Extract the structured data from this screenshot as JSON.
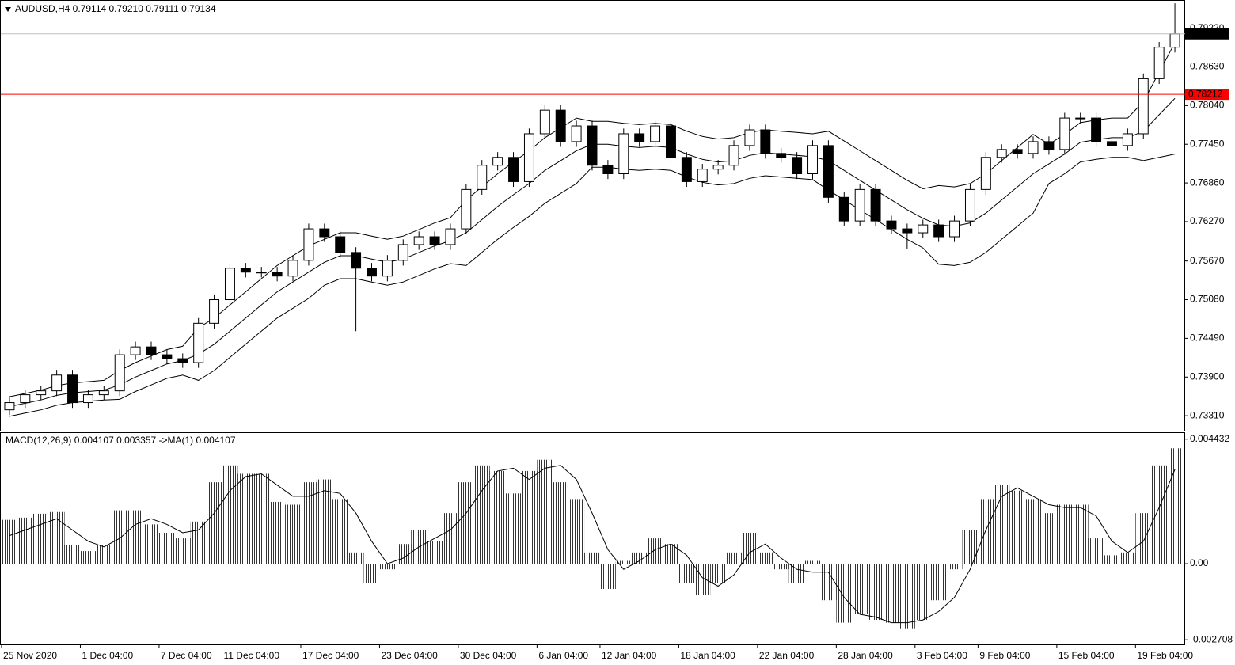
{
  "chart_data": [
    {
      "type": "candlestick",
      "title": "AUDUSD,H4  0.79114 0.79210 0.79111 0.79134",
      "categories": [
        "25 Nov 2020",
        null,
        null,
        null,
        null,
        "1 Dec 04:00",
        null,
        null,
        null,
        null,
        "7 Dec 04:00",
        null,
        null,
        null,
        "11 Dec 04:00",
        null,
        null,
        null,
        null,
        "17 Dec 04:00",
        null,
        null,
        null,
        null,
        "23 Dec 04:00",
        null,
        null,
        null,
        null,
        "30 Dec 04:00",
        null,
        null,
        null,
        null,
        "6 Jan 04:00",
        null,
        null,
        null,
        "12 Jan 04:00",
        null,
        null,
        null,
        null,
        "18 Jan 04:00",
        null,
        null,
        null,
        null,
        "22 Jan 04:00",
        null,
        null,
        null,
        null,
        "28 Jan 04:00",
        null,
        null,
        null,
        null,
        "3 Feb 04:00",
        null,
        null,
        null,
        "9 Feb 04:00",
        null,
        null,
        null,
        null,
        "15 Feb 04:00",
        null,
        null,
        null,
        null,
        "19 Feb 04:00",
        null,
        null
      ],
      "ohlc": [
        [
          0.734,
          0.7359,
          0.7332,
          0.7351
        ],
        [
          0.7351,
          0.7371,
          0.7343,
          0.7363
        ],
        [
          0.7363,
          0.7377,
          0.7355,
          0.7369
        ],
        [
          0.7369,
          0.7401,
          0.7361,
          0.7393
        ],
        [
          0.7393,
          0.7401,
          0.7343,
          0.7351
        ],
        [
          0.7351,
          0.7371,
          0.7343,
          0.7363
        ],
        [
          0.7363,
          0.7377,
          0.7355,
          0.7369
        ],
        [
          0.7369,
          0.7432,
          0.7361,
          0.7424
        ],
        [
          0.7424,
          0.7444,
          0.7416,
          0.7436
        ],
        [
          0.7436,
          0.7444,
          0.7416,
          0.7424
        ],
        [
          0.7424,
          0.7432,
          0.741,
          0.7418
        ],
        [
          0.7418,
          0.7426,
          0.7404,
          0.7412
        ],
        [
          0.7412,
          0.748,
          0.7404,
          0.7472
        ],
        [
          0.7472,
          0.7516,
          0.7464,
          0.7508
        ],
        [
          0.7508,
          0.7564,
          0.75,
          0.7556
        ],
        [
          0.7556,
          0.7564,
          0.7542,
          0.755
        ],
        [
          0.755,
          0.7558,
          0.7542,
          0.755
        ],
        [
          0.755,
          0.7558,
          0.7536,
          0.7544
        ],
        [
          0.7544,
          0.7576,
          0.7536,
          0.7568
        ],
        [
          0.7568,
          0.7624,
          0.756,
          0.7616
        ],
        [
          0.7616,
          0.7624,
          0.7596,
          0.7604
        ],
        [
          0.7604,
          0.7612,
          0.7572,
          0.758
        ],
        [
          0.758,
          0.7588,
          0.746,
          0.7556
        ],
        [
          0.7556,
          0.7564,
          0.7536,
          0.7544
        ],
        [
          0.7544,
          0.7576,
          0.7536,
          0.7568
        ],
        [
          0.7568,
          0.76,
          0.756,
          0.7592
        ],
        [
          0.7592,
          0.7612,
          0.7584,
          0.7604
        ],
        [
          0.7604,
          0.7612,
          0.7584,
          0.7592
        ],
        [
          0.7592,
          0.7624,
          0.7584,
          0.7616
        ],
        [
          0.7616,
          0.7684,
          0.7608,
          0.7676
        ],
        [
          0.7676,
          0.7721,
          0.7668,
          0.7713
        ],
        [
          0.7713,
          0.7733,
          0.7705,
          0.7725
        ],
        [
          0.7725,
          0.7733,
          0.768,
          0.7688
        ],
        [
          0.7688,
          0.7769,
          0.768,
          0.7761
        ],
        [
          0.7761,
          0.7805,
          0.7753,
          0.7797
        ],
        [
          0.7797,
          0.7805,
          0.7741,
          0.7749
        ],
        [
          0.7749,
          0.7781,
          0.7741,
          0.7773
        ],
        [
          0.7773,
          0.7781,
          0.7705,
          0.7713
        ],
        [
          0.7713,
          0.7721,
          0.7692,
          0.77
        ],
        [
          0.77,
          0.7769,
          0.7692,
          0.7761
        ],
        [
          0.7761,
          0.7769,
          0.7741,
          0.7749
        ],
        [
          0.7749,
          0.7781,
          0.7741,
          0.7773
        ],
        [
          0.7773,
          0.7781,
          0.7717,
          0.7725
        ],
        [
          0.7725,
          0.7733,
          0.768,
          0.7688
        ],
        [
          0.7688,
          0.7715,
          0.768,
          0.7707
        ],
        [
          0.7707,
          0.7721,
          0.7699,
          0.7713
        ],
        [
          0.7713,
          0.7751,
          0.7705,
          0.7743
        ],
        [
          0.7743,
          0.7775,
          0.7735,
          0.7767
        ],
        [
          0.7767,
          0.7775,
          0.7723,
          0.7731
        ],
        [
          0.7731,
          0.7739,
          0.7717,
          0.7725
        ],
        [
          0.7725,
          0.7733,
          0.7692,
          0.77
        ],
        [
          0.77,
          0.7751,
          0.7692,
          0.7743
        ],
        [
          0.7743,
          0.7751,
          0.7656,
          0.7664
        ],
        [
          0.7664,
          0.7672,
          0.762,
          0.7628
        ],
        [
          0.7628,
          0.7684,
          0.762,
          0.7676
        ],
        [
          0.7676,
          0.7684,
          0.762,
          0.7628
        ],
        [
          0.7628,
          0.7636,
          0.7608,
          0.7616
        ],
        [
          0.7616,
          0.7624,
          0.7585,
          0.761
        ],
        [
          0.761,
          0.763,
          0.7602,
          0.7622
        ],
        [
          0.7622,
          0.763,
          0.7596,
          0.7604
        ],
        [
          0.7604,
          0.7636,
          0.7596,
          0.7628
        ],
        [
          0.7628,
          0.7684,
          0.762,
          0.7676
        ],
        [
          0.7676,
          0.7733,
          0.7668,
          0.7725
        ],
        [
          0.7725,
          0.7745,
          0.7717,
          0.7737
        ],
        [
          0.7737,
          0.7745,
          0.7723,
          0.7731
        ],
        [
          0.7731,
          0.7757,
          0.7723,
          0.7749
        ],
        [
          0.7749,
          0.7757,
          0.7729,
          0.7737
        ],
        [
          0.7737,
          0.7793,
          0.7729,
          0.7785
        ],
        [
          0.7785,
          0.7793,
          0.7777,
          0.7785
        ],
        [
          0.7785,
          0.7793,
          0.7741,
          0.7749
        ],
        [
          0.7749,
          0.7757,
          0.7735,
          0.7743
        ],
        [
          0.7743,
          0.7769,
          0.7735,
          0.7761
        ],
        [
          0.7761,
          0.7853,
          0.7753,
          0.7845
        ],
        [
          0.7845,
          0.7901,
          0.7837,
          0.7893
        ],
        [
          0.7893,
          0.796,
          0.7885,
          0.79134
        ]
      ],
      "bands": {
        "upper": [
          0.736,
          0.7365,
          0.737,
          0.7377,
          0.7381,
          0.7383,
          0.7385,
          0.74,
          0.7412,
          0.7422,
          0.7432,
          0.7437,
          0.7465,
          0.748,
          0.75,
          0.752,
          0.754,
          0.756,
          0.7575,
          0.759,
          0.76,
          0.761,
          0.761,
          0.7605,
          0.76,
          0.7605,
          0.7615,
          0.7625,
          0.7633,
          0.766,
          0.768,
          0.77,
          0.7718,
          0.7735,
          0.7755,
          0.777,
          0.7785,
          0.778,
          0.778,
          0.7777,
          0.7775,
          0.7777,
          0.7775,
          0.7765,
          0.7757,
          0.7753,
          0.7755,
          0.7763,
          0.7767,
          0.7765,
          0.7763,
          0.7761,
          0.7765,
          0.775,
          0.7735,
          0.772,
          0.7705,
          0.769,
          0.7677,
          0.7682,
          0.768,
          0.7685,
          0.77,
          0.772,
          0.774,
          0.776,
          0.7745,
          0.776,
          0.7778,
          0.7782,
          0.7785,
          0.7785,
          0.781,
          0.7855,
          0.79
        ],
        "middle": [
          0.7345,
          0.735,
          0.7355,
          0.7362,
          0.7366,
          0.7368,
          0.737,
          0.7378,
          0.739,
          0.74,
          0.741,
          0.7415,
          0.7425,
          0.744,
          0.746,
          0.748,
          0.75,
          0.752,
          0.7535,
          0.755,
          0.7565,
          0.7575,
          0.7575,
          0.757,
          0.7565,
          0.757,
          0.758,
          0.759,
          0.7598,
          0.761,
          0.763,
          0.765,
          0.7668,
          0.7685,
          0.7705,
          0.772,
          0.7735,
          0.7745,
          0.7745,
          0.7742,
          0.774,
          0.7742,
          0.774,
          0.773,
          0.7722,
          0.7718,
          0.772,
          0.7728,
          0.7732,
          0.773,
          0.7728,
          0.7726,
          0.772,
          0.7705,
          0.769,
          0.7675,
          0.766,
          0.7645,
          0.7632,
          0.7622,
          0.762,
          0.7625,
          0.764,
          0.766,
          0.768,
          0.77,
          0.7715,
          0.773,
          0.7748,
          0.7752,
          0.7755,
          0.7755,
          0.7765,
          0.779,
          0.7815
        ],
        "lower": [
          0.733,
          0.7335,
          0.734,
          0.7347,
          0.7351,
          0.7353,
          0.7355,
          0.7356,
          0.7368,
          0.7378,
          0.7388,
          0.7393,
          0.7385,
          0.74,
          0.742,
          0.744,
          0.746,
          0.748,
          0.7495,
          0.751,
          0.753,
          0.754,
          0.754,
          0.7535,
          0.753,
          0.7535,
          0.7545,
          0.7555,
          0.7563,
          0.756,
          0.758,
          0.76,
          0.7618,
          0.7635,
          0.7655,
          0.767,
          0.7685,
          0.771,
          0.771,
          0.7707,
          0.7705,
          0.7707,
          0.7705,
          0.7695,
          0.7687,
          0.7683,
          0.7685,
          0.7693,
          0.7697,
          0.7695,
          0.7693,
          0.7691,
          0.7675,
          0.766,
          0.7645,
          0.763,
          0.7615,
          0.76,
          0.7587,
          0.7562,
          0.756,
          0.7565,
          0.758,
          0.76,
          0.762,
          0.764,
          0.7685,
          0.77,
          0.7718,
          0.7722,
          0.7725,
          0.7725,
          0.772,
          0.7725,
          0.773
        ]
      },
      "color": "#000000",
      "bid": 0.79134,
      "level": 0.78212,
      "level_color": "#ff0000",
      "ylim": [
        0.7307,
        0.7965
      ],
      "yticks": [
        {
          "value": 0.7922,
          "label": "0.79220"
        },
        {
          "value": 0.7863,
          "label": "0.78630"
        },
        {
          "value": 0.7804,
          "label": "0.78040"
        },
        {
          "value": 0.7745,
          "label": "0.77450"
        },
        {
          "value": 0.7686,
          "label": "0.76860"
        },
        {
          "value": 0.7627,
          "label": "0.76270"
        },
        {
          "value": 0.7567,
          "label": "0.75670"
        },
        {
          "value": 0.7508,
          "label": "0.75080"
        },
        {
          "value": 0.7449,
          "label": "0.74490"
        },
        {
          "value": 0.739,
          "label": "0.73900"
        },
        {
          "value": 0.7331,
          "label": "0.73310"
        }
      ]
    },
    {
      "type": "macd",
      "title": "MACD(12,26,9) 0.004107 0.003357  ->MA(1) 0.004107",
      "histogram": [
        0.00156,
        0.00164,
        0.00178,
        0.00184,
        0.00067,
        0.00045,
        0.00067,
        0.0019,
        0.0019,
        0.0014,
        0.0011,
        0.0009,
        0.0015,
        0.0029,
        0.0035,
        0.0032,
        0.0032,
        0.0022,
        0.0021,
        0.0029,
        0.003,
        0.0023,
        0.0004,
        -0.0007,
        -0.0002,
        0.0007,
        0.0012,
        0.0008,
        0.0018,
        0.0029,
        0.0035,
        0.0033,
        0.0025,
        0.0033,
        0.0037,
        0.0029,
        0.0023,
        0.0004,
        -0.0009,
        0.0001,
        0.0004,
        0.0009,
        0.0007,
        -0.0007,
        -0.0011,
        -0.0007,
        0.0004,
        0.0011,
        0.0004,
        -0.0002,
        -0.0007,
        0.0001,
        -0.0013,
        -0.0021,
        -0.0018,
        -0.002,
        -0.0021,
        -0.0023,
        -0.002,
        -0.0013,
        -0.0002,
        0.0012,
        0.0023,
        0.0028,
        0.0026,
        0.0023,
        0.0018,
        0.0021,
        0.0021,
        0.0009,
        0.0003,
        0.0004,
        0.0018,
        0.0035,
        0.004107
      ],
      "signal": [
        0.001,
        0.0012,
        0.0014,
        0.0016,
        0.0012,
        0.0008,
        0.0006,
        0.0009,
        0.0014,
        0.0016,
        0.0014,
        0.0011,
        0.0012,
        0.0018,
        0.0026,
        0.0031,
        0.0032,
        0.0028,
        0.0024,
        0.0024,
        0.0026,
        0.0025,
        0.0018,
        0.0008,
        0,
        0.0002,
        0.0006,
        0.0009,
        0.0012,
        0.0018,
        0.0026,
        0.0033,
        0.0034,
        0.003,
        0.0034,
        0.0035,
        0.003,
        0.0018,
        0.0005,
        -0.0002,
        0.0001,
        0.0005,
        0.0007,
        0.0003,
        -0.0005,
        -0.0008,
        -0.0004,
        0.0004,
        0.0007,
        0.0002,
        -0.0002,
        -0.0003,
        -0.0003,
        -0.0012,
        -0.0018,
        -0.0019,
        -0.0021,
        -0.0021,
        -0.002,
        -0.0017,
        -0.0012,
        -0.0002,
        0.0012,
        0.0024,
        0.0027,
        0.0024,
        0.0021,
        0.002,
        0.002,
        0.0017,
        0.0008,
        0.0004,
        0.0008,
        0.002,
        0.003357
      ],
      "color": "#000000",
      "ylim": [
        -0.0029,
        0.00465
      ],
      "yticks": [
        0.004432,
        {
          "value": 0,
          "label": "0.00"
        },
        -0.002708
      ]
    }
  ]
}
